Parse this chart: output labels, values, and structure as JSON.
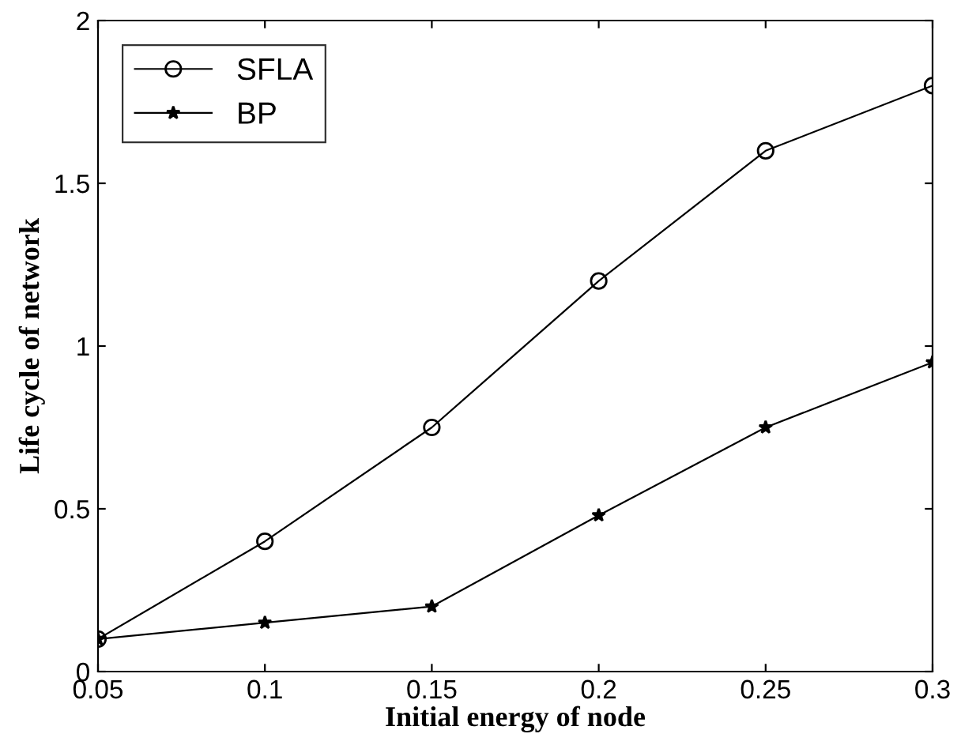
{
  "chart_data": {
    "type": "line",
    "xlabel": "Initial energy of node",
    "ylabel": "Life cycle of network",
    "x": [
      0.05,
      0.1,
      0.15,
      0.2,
      0.25,
      0.3
    ],
    "series": [
      {
        "name": "SFLA",
        "color": "#000000",
        "marker": "circle",
        "values": [
          0.1,
          0.4,
          0.75,
          1.2,
          1.6,
          1.8
        ]
      },
      {
        "name": "BP",
        "color": "#000000",
        "marker": "star",
        "values": [
          0.1,
          0.15,
          0.2,
          0.48,
          0.75,
          0.95
        ]
      }
    ],
    "xlim": [
      0.05,
      0.3
    ],
    "xticks": [
      0.05,
      0.1,
      0.15,
      0.2,
      0.25,
      0.3
    ],
    "ylim": [
      0,
      2
    ],
    "yticks": [
      0,
      0.5,
      1,
      1.5,
      2
    ],
    "legend": "top left",
    "grid": false,
    "line_style": "solid"
  }
}
